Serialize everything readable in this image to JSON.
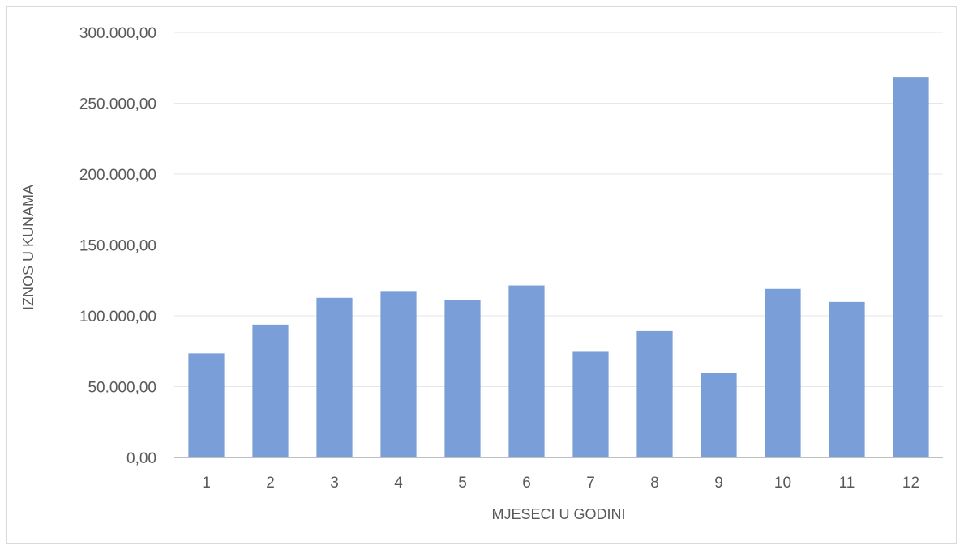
{
  "chart_data": {
    "type": "bar",
    "title": "",
    "xlabel": "MJESECI U GODINI",
    "ylabel": "IZNOS U KUNAMA",
    "categories": [
      "1",
      "2",
      "3",
      "4",
      "5",
      "6",
      "7",
      "8",
      "9",
      "10",
      "11",
      "12"
    ],
    "values": [
      73500,
      93800,
      112700,
      117500,
      111400,
      121400,
      74600,
      89200,
      60000,
      119000,
      109800,
      268500
    ],
    "ylim": [
      0,
      300000
    ],
    "yticks": [
      0,
      50000,
      100000,
      150000,
      200000,
      250000,
      300000
    ],
    "ytick_labels": [
      "0,00",
      "50.000,00",
      "100.000,00",
      "150.000,00",
      "200.000,00",
      "250.000,00",
      "300.000,00"
    ],
    "grid": true,
    "legend": "none",
    "bar_color": "#7a9fd8",
    "grid_color": "#e6e6e6",
    "axis_color": "#bfbfbf",
    "text_color": "#595959"
  }
}
